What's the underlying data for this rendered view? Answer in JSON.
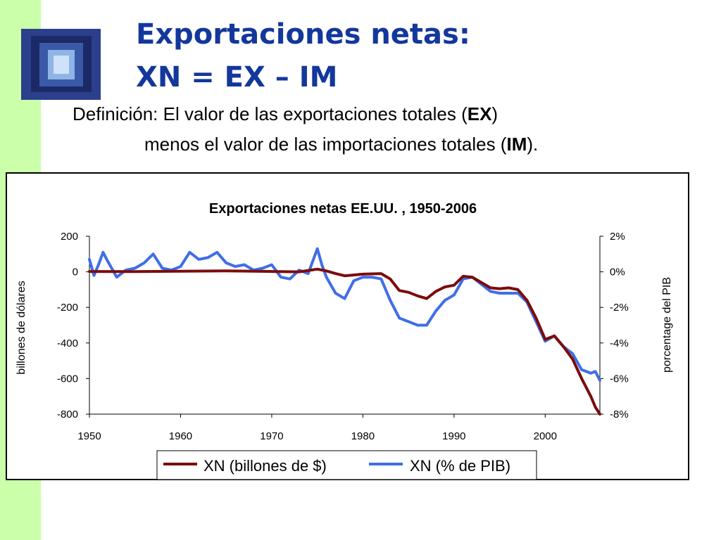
{
  "slide": {
    "title_line1": "Exportaciones netas:",
    "title_line2": "XN = EX – IM",
    "definition": {
      "line1_text": "Definición: El valor de las exportaciones totales (",
      "line1_bold": "EX",
      "line1_end": ")",
      "line2_text": "menos el valor de las importaciones totales (",
      "line2_bold": "IM",
      "line2_end": ")."
    }
  },
  "colors": {
    "title": "#13379b",
    "left_band": "#ccffaa",
    "series_billions": "#7b0c0c",
    "series_gdp": "#3f6ee8"
  },
  "icons": {
    "logo": "window-shaft-photo"
  },
  "chart_data": {
    "type": "line",
    "title": "Exportaciones netas EE.UU. , 1950-2006",
    "xlabel": "",
    "ylabel": "billones de dólares",
    "ylabel_right": "porcentage del PIB",
    "xlim": [
      1950,
      2006
    ],
    "x_ticks": [
      1950,
      1960,
      1970,
      1980,
      1990,
      2000
    ],
    "x_tick_labels": [
      "1950",
      "1960",
      "1970",
      "1980",
      "1990",
      "2000"
    ],
    "ylim": [
      -800,
      200
    ],
    "y_ticks": [
      200,
      0,
      -200,
      -400,
      -600,
      -800
    ],
    "y_tick_labels": [
      "200",
      "0",
      "-200",
      "-400",
      "-600",
      "-800"
    ],
    "ylim_right": [
      -8,
      2
    ],
    "y_ticks_right": [
      2,
      0,
      -2,
      -4,
      -6,
      -8
    ],
    "y_tick_labels_right": [
      "2%",
      "0%",
      "-2%",
      "-4%",
      "-6%",
      "-8%"
    ],
    "grid": false,
    "legend_position": "bottom",
    "series": [
      {
        "name": "XN (billones de $)",
        "axis": "left",
        "x": [
          1950,
          1955,
          1960,
          1965,
          1970,
          1973,
          1975,
          1976,
          1977,
          1978,
          1980,
          1982,
          1983,
          1984,
          1985,
          1986,
          1987,
          1988,
          1989,
          1990,
          1991,
          1992,
          1993,
          1994,
          1995,
          1996,
          1997,
          1998,
          1999,
          2000,
          2001,
          2002,
          2003,
          2004,
          2005,
          2005.5,
          2006
        ],
        "values": [
          2,
          1,
          3,
          5,
          2,
          0,
          15,
          5,
          -10,
          -22,
          -13,
          -10,
          -40,
          -105,
          -115,
          -135,
          -150,
          -110,
          -85,
          -75,
          -25,
          -30,
          -60,
          -90,
          -95,
          -90,
          -100,
          -160,
          -260,
          -380,
          -360,
          -420,
          -490,
          -600,
          -700,
          -760,
          -800
        ]
      },
      {
        "name": "XN (% de PIB)",
        "axis": "right",
        "x": [
          1950,
          1950.5,
          1951,
          1951.5,
          1952,
          1953,
          1954,
          1955,
          1956,
          1957,
          1958,
          1959,
          1960,
          1961,
          1962,
          1963,
          1964,
          1965,
          1966,
          1967,
          1968,
          1969,
          1970,
          1971,
          1972,
          1973,
          1974,
          1975,
          1975.5,
          1976,
          1977,
          1978,
          1979,
          1980,
          1981,
          1982,
          1983,
          1984,
          1985,
          1986,
          1987,
          1988,
          1989,
          1990,
          1991,
          1992,
          1993,
          1994,
          1995,
          1996,
          1997,
          1998,
          1999,
          2000,
          2001,
          2002,
          2003,
          2004,
          2005,
          2005.5,
          2006
        ],
        "values": [
          0.7,
          -0.2,
          0.4,
          1.1,
          0.6,
          -0.3,
          0.1,
          0.2,
          0.5,
          1.0,
          0.2,
          0.1,
          0.3,
          1.1,
          0.7,
          0.8,
          1.1,
          0.5,
          0.3,
          0.4,
          0.1,
          0.2,
          0.4,
          -0.3,
          -0.4,
          0.1,
          -0.1,
          1.3,
          0.4,
          -0.3,
          -1.2,
          -1.5,
          -0.5,
          -0.3,
          -0.3,
          -0.4,
          -1.6,
          -2.6,
          -2.8,
          -3.0,
          -3.0,
          -2.2,
          -1.6,
          -1.3,
          -0.4,
          -0.3,
          -0.7,
          -1.1,
          -1.2,
          -1.2,
          -1.2,
          -1.7,
          -2.8,
          -3.9,
          -3.6,
          -4.2,
          -4.6,
          -5.5,
          -5.7,
          -5.6,
          -6.1
        ]
      }
    ]
  }
}
